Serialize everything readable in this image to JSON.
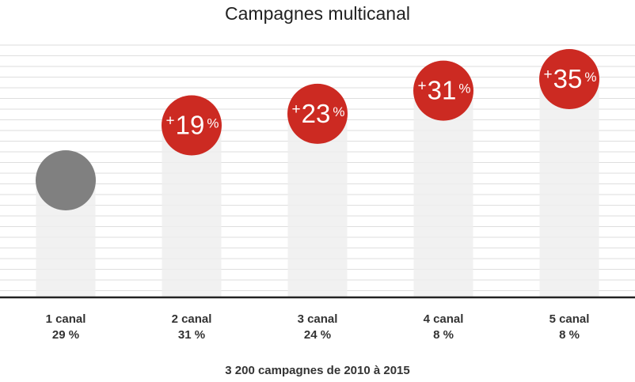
{
  "chart_data": {
    "type": "bar",
    "title": "Campagnes multicanal",
    "categories": [
      "1 canal",
      "2 canal",
      "3 canal",
      "4 canal",
      "5 canal"
    ],
    "shares": [
      "29 %",
      "31 %",
      "24 %",
      "8 %",
      "8 %"
    ],
    "values": [
      0,
      19,
      23,
      31,
      35
    ],
    "badges": [
      {
        "sign": "",
        "number": "",
        "unit": ""
      },
      {
        "sign": "+",
        "number": "19",
        "unit": "%"
      },
      {
        "sign": "+",
        "number": "23",
        "unit": "%"
      },
      {
        "sign": "+",
        "number": "31",
        "unit": "%"
      },
      {
        "sign": "+",
        "number": "35",
        "unit": "%"
      }
    ],
    "ylim": [
      0,
      35
    ],
    "grid": true,
    "footnote": "3 200 campagnes de 2010 à 2015",
    "colors": {
      "baseline_marker": "#808080",
      "uplift_marker": "#cc2a22",
      "bar": "#eeeeee",
      "grid": "#dedede",
      "axis": "#222222"
    }
  }
}
